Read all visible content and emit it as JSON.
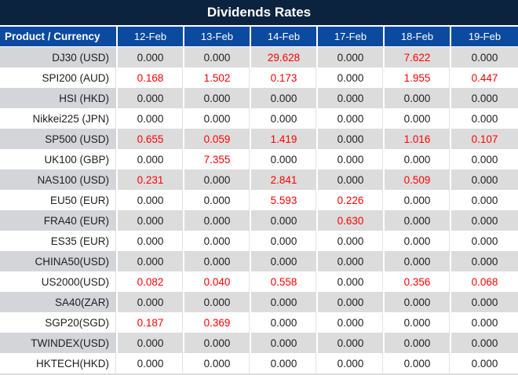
{
  "title": "Dividends Rates",
  "table": {
    "product_header": "Product / Currency",
    "date_headers": [
      "12-Feb",
      "13-Feb",
      "14-Feb",
      "17-Feb",
      "18-Feb",
      "19-Feb"
    ],
    "rows": [
      {
        "product": "DJ30 (USD)",
        "values": [
          "0.000",
          "0.000",
          "29.628",
          "0.000",
          "7.622",
          "0.000"
        ]
      },
      {
        "product": "SPI200 (AUD)",
        "values": [
          "0.168",
          "1.502",
          "0.173",
          "0.000",
          "1.955",
          "0.447"
        ]
      },
      {
        "product": "HSI (HKD)",
        "values": [
          "0.000",
          "0.000",
          "0.000",
          "0.000",
          "0.000",
          "0.000"
        ]
      },
      {
        "product": "Nikkei225 (JPN)",
        "values": [
          "0.000",
          "0.000",
          "0.000",
          "0.000",
          "0.000",
          "0.000"
        ]
      },
      {
        "product": "SP500 (USD)",
        "values": [
          "0.655",
          "0.059",
          "1.419",
          "0.000",
          "1.016",
          "0.107"
        ]
      },
      {
        "product": "UK100 (GBP)",
        "values": [
          "0.000",
          "7.355",
          "0.000",
          "0.000",
          "0.000",
          "0.000"
        ]
      },
      {
        "product": "NAS100 (USD)",
        "values": [
          "0.231",
          "0.000",
          "2.841",
          "0.000",
          "0.509",
          "0.000"
        ]
      },
      {
        "product": "EU50 (EUR)",
        "values": [
          "0.000",
          "0.000",
          "5.593",
          "0.226",
          "0.000",
          "0.000"
        ]
      },
      {
        "product": "FRA40 (EUR)",
        "values": [
          "0.000",
          "0.000",
          "0.000",
          "0.630",
          "0.000",
          "0.000"
        ]
      },
      {
        "product": "ES35 (EUR)",
        "values": [
          "0.000",
          "0.000",
          "0.000",
          "0.000",
          "0.000",
          "0.000"
        ]
      },
      {
        "product": "CHINA50(USD)",
        "values": [
          "0.000",
          "0.000",
          "0.000",
          "0.000",
          "0.000",
          "0.000"
        ]
      },
      {
        "product": "US2000(USD)",
        "values": [
          "0.082",
          "0.040",
          "0.558",
          "0.000",
          "0.356",
          "0.068"
        ]
      },
      {
        "product": "SA40(ZAR)",
        "values": [
          "0.000",
          "0.000",
          "0.000",
          "0.000",
          "0.000",
          "0.000"
        ]
      },
      {
        "product": "SGP20(SGD)",
        "values": [
          "0.187",
          "0.369",
          "0.000",
          "0.000",
          "0.000",
          "0.000"
        ]
      },
      {
        "product": "TWINDEX(USD)",
        "values": [
          "0.000",
          "0.000",
          "0.000",
          "0.000",
          "0.000",
          "0.000"
        ]
      },
      {
        "product": "HKTECH(HKD)",
        "values": [
          "0.000",
          "0.000",
          "0.000",
          "0.000",
          "0.000",
          "0.000"
        ]
      }
    ]
  },
  "colors": {
    "title_bg": "#0C2340",
    "header_bg": "#0B4A9F",
    "row_gray": "#DCDCDC",
    "row_gray_product": "#D3D5D9",
    "gridline": "#E3E3E3",
    "value_positive": "#FF0000",
    "value_zero": "#1E1E1E"
  }
}
